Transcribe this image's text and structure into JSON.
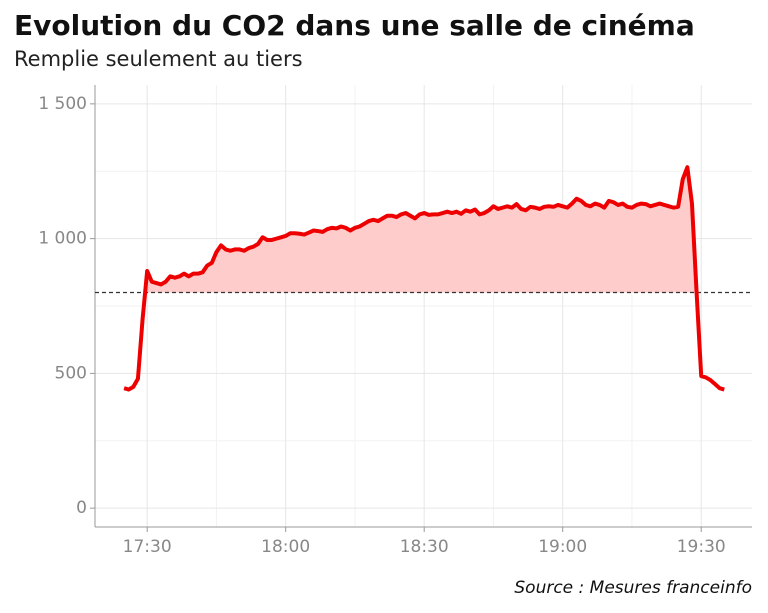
{
  "chart_data": {
    "type": "line",
    "title": "Evolution du CO2 dans une salle de cinéma",
    "subtitle": "Remplie seulement au tiers",
    "source": "Source : Mesures franceinfo",
    "x": [
      1045,
      1046,
      1047,
      1048,
      1049,
      1050,
      1051,
      1052,
      1053,
      1054,
      1055,
      1056,
      1057,
      1058,
      1059,
      1060,
      1061,
      1062,
      1063,
      1064,
      1065,
      1066,
      1067,
      1068,
      1069,
      1070,
      1071,
      1072,
      1073,
      1074,
      1075,
      1076,
      1077,
      1078,
      1079,
      1080,
      1081,
      1082,
      1083,
      1084,
      1085,
      1086,
      1087,
      1088,
      1089,
      1090,
      1091,
      1092,
      1093,
      1094,
      1095,
      1096,
      1097,
      1098,
      1099,
      1100,
      1101,
      1102,
      1103,
      1104,
      1105,
      1106,
      1107,
      1108,
      1109,
      1110,
      1111,
      1112,
      1113,
      1114,
      1115,
      1116,
      1117,
      1118,
      1119,
      1120,
      1121,
      1122,
      1123,
      1124,
      1125,
      1126,
      1127,
      1128,
      1129,
      1130,
      1131,
      1132,
      1133,
      1134,
      1135,
      1136,
      1137,
      1138,
      1139,
      1140,
      1141,
      1142,
      1143,
      1144,
      1145,
      1146,
      1147,
      1148,
      1149,
      1150,
      1151,
      1152,
      1153,
      1154,
      1155,
      1156,
      1157,
      1158,
      1159,
      1160,
      1161,
      1162,
      1163,
      1164,
      1165,
      1166,
      1167,
      1168,
      1169,
      1170,
      1171,
      1172,
      1173,
      1174,
      1175
    ],
    "series": [
      {
        "color": "#ee0000",
        "values": [
          445,
          440,
          450,
          480,
          700,
          880,
          840,
          835,
          830,
          840,
          860,
          855,
          860,
          870,
          860,
          870,
          870,
          875,
          900,
          910,
          950,
          975,
          960,
          955,
          960,
          960,
          955,
          965,
          970,
          980,
          1005,
          995,
          995,
          1000,
          1005,
          1010,
          1020,
          1020,
          1018,
          1015,
          1022,
          1030,
          1028,
          1025,
          1035,
          1040,
          1038,
          1045,
          1040,
          1030,
          1040,
          1045,
          1055,
          1065,
          1070,
          1065,
          1075,
          1085,
          1085,
          1080,
          1090,
          1095,
          1085,
          1075,
          1090,
          1095,
          1088,
          1090,
          1090,
          1095,
          1100,
          1095,
          1100,
          1092,
          1105,
          1100,
          1108,
          1090,
          1095,
          1105,
          1120,
          1110,
          1115,
          1120,
          1115,
          1128,
          1110,
          1105,
          1118,
          1115,
          1110,
          1118,
          1120,
          1118,
          1125,
          1120,
          1115,
          1130,
          1148,
          1140,
          1125,
          1120,
          1130,
          1125,
          1115,
          1140,
          1135,
          1125,
          1130,
          1118,
          1115,
          1125,
          1130,
          1128,
          1120,
          1125,
          1130,
          1125,
          1120,
          1115,
          1118,
          1220,
          1265,
          1130,
          800,
          490,
          485,
          475,
          460,
          445,
          440
        ]
      }
    ],
    "threshold": 800,
    "fill_color": "#ffcccc",
    "xlim": [
      1038.7,
      1181
    ],
    "xticks": [
      {
        "value": 1050,
        "label": "17:30"
      },
      {
        "value": 1080,
        "label": "18:00"
      },
      {
        "value": 1110,
        "label": "18:30"
      },
      {
        "value": 1140,
        "label": "19:00"
      },
      {
        "value": 1170,
        "label": "19:30"
      }
    ],
    "minor_xticks": [
      1065,
      1095,
      1125,
      1155
    ],
    "ylim": [
      -70,
      1570
    ],
    "yticks": [
      0,
      500,
      {
        "value": 1000,
        "label": "1 000"
      },
      {
        "value": 1500,
        "label": "1 500"
      }
    ],
    "minor_yticks": [
      250,
      750,
      1250
    ],
    "grid": true
  }
}
